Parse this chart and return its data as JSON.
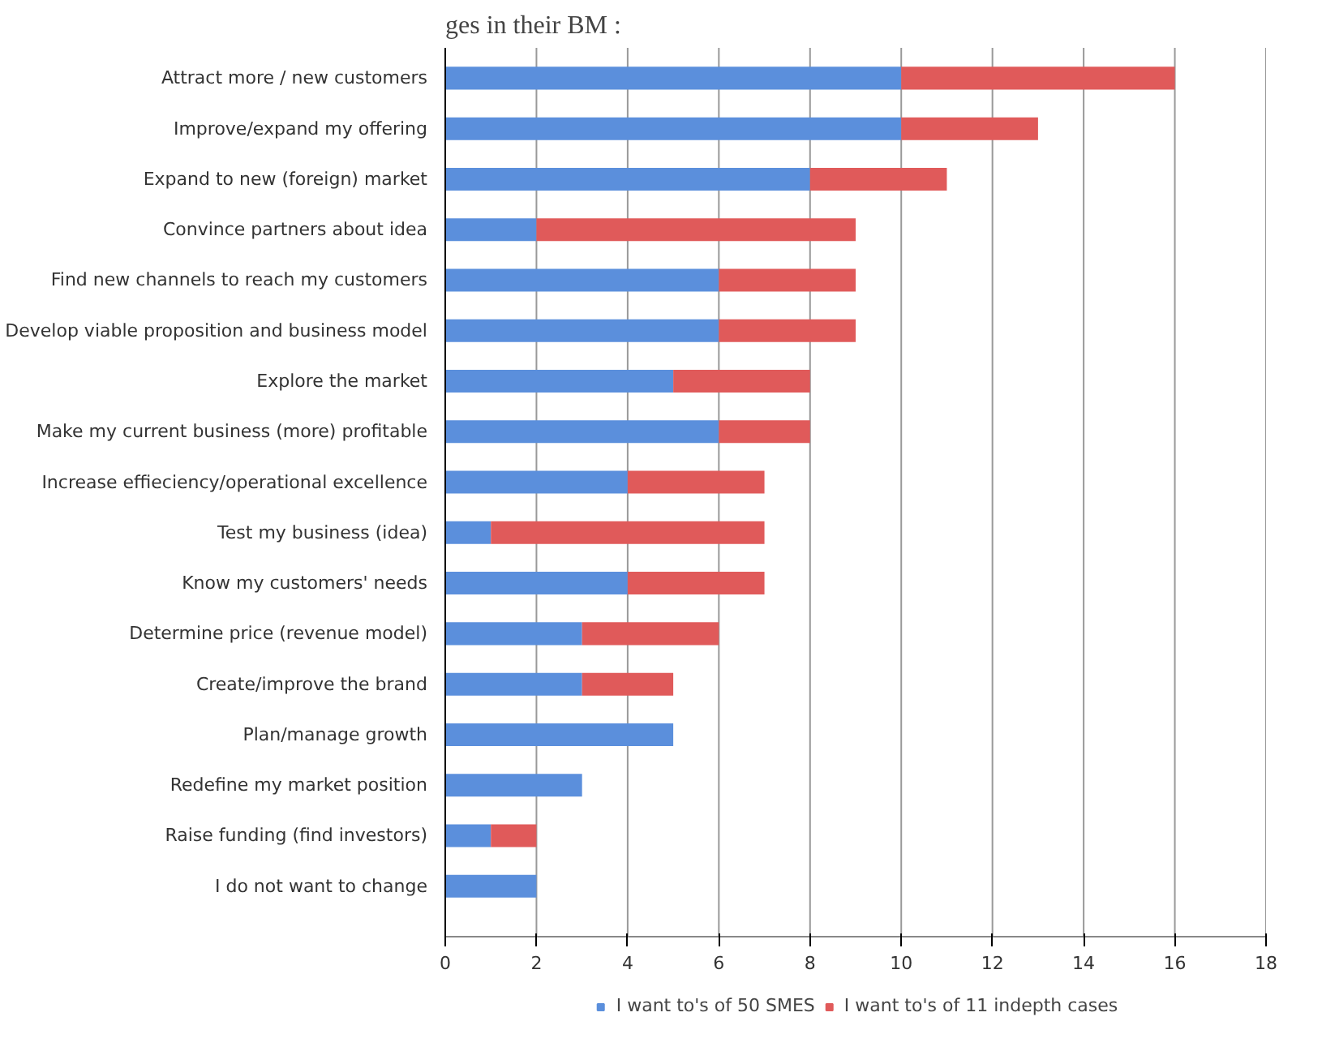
{
  "chart_data": {
    "type": "bar",
    "orientation": "horizontal",
    "stacked": true,
    "title": "ges in their BM :",
    "categories": [
      "Attract more / new customers",
      "Improve/expand my offering",
      "Expand to new (foreign) market",
      "Convince partners about idea",
      "Find new channels to reach my customers",
      "Develop viable proposition and business model",
      "Explore the market",
      "Make my current business (more) profitable",
      "Increase effieciency/operational excellence",
      "Test my business (idea)",
      "Know my customers' needs",
      "Determine price (revenue model)",
      "Create/improve the brand",
      "Plan/manage growth",
      "Redefine my market position",
      "Raise funding (find investors)",
      "I do not want to change"
    ],
    "series": [
      {
        "name": "I want to's of 50 SMES",
        "color": "#5b8fdc",
        "values": [
          10,
          10,
          8,
          2,
          6,
          6,
          5,
          6,
          4,
          1,
          4,
          3,
          3,
          5,
          3,
          1,
          2
        ]
      },
      {
        "name": "I want to's of 11 indepth cases",
        "color": "#e05a5a",
        "values": [
          6,
          3,
          3,
          7,
          3,
          3,
          3,
          2,
          3,
          6,
          3,
          3,
          2,
          0,
          0,
          1,
          0
        ]
      }
    ],
    "xlim": [
      0,
      18
    ],
    "xticks": [
      0,
      2,
      4,
      6,
      8,
      10,
      12,
      14,
      16,
      18
    ],
    "grid": "x",
    "legend": "bottom"
  }
}
